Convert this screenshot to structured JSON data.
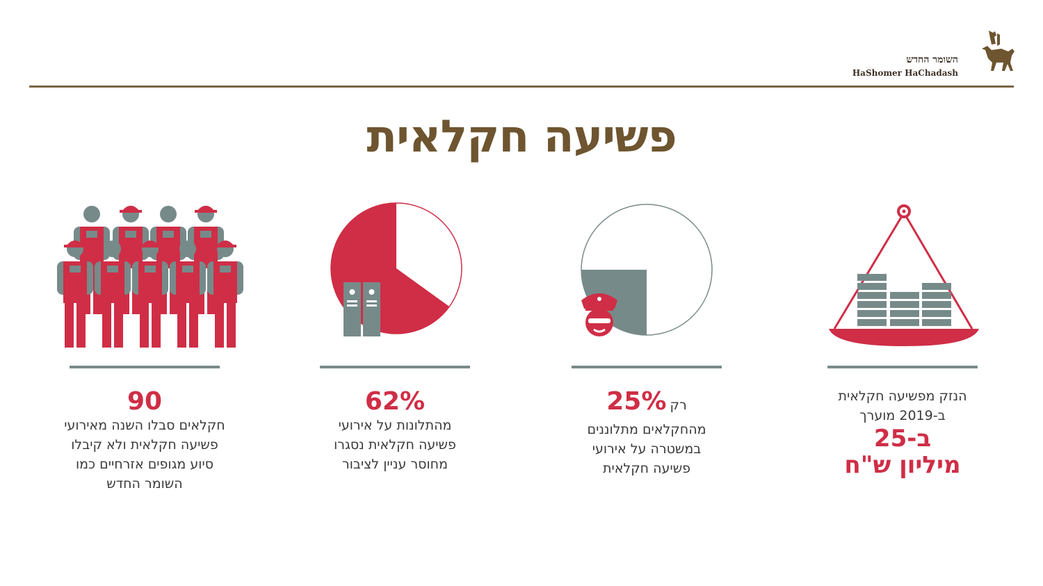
{
  "brand": {
    "name_he": "השומר החדש",
    "name_en": "HaShomer HaChadash"
  },
  "title": "פשיעה חקלאית",
  "stats": [
    {
      "icon": "scale-with-money-icon",
      "lines": [
        "הנזק מפשיעה חקלאית",
        "ב-2019 מוערך"
      ],
      "highlight": [
        "ב-25",
        "מיליון ש\"ח"
      ]
    },
    {
      "icon": "police-pie-icon",
      "pie_fraction": 0.25,
      "prefix": "רק",
      "value": "25%",
      "lines": [
        "מהחקלאים מתלוננים",
        "במשטרה על אירועי",
        "פשיעה חקלאית"
      ]
    },
    {
      "icon": "binders-pie-icon",
      "pie_fraction": 0.62,
      "value": "62%",
      "lines": [
        "מהתלונות על אירועי",
        "פשיעה חקלאית נסגרו",
        "מחוסר עניין לציבור"
      ]
    },
    {
      "icon": "farmers-group-icon",
      "value": "90",
      "lines": [
        "חקלאים סבלו השנה מאירועי",
        "פשיעה חקלאית ולא קיבלו",
        "סיוע מגופים אזרחיים כמו",
        "השומר החדש"
      ]
    }
  ],
  "colors": {
    "accent": "#cf2e46",
    "brand": "#6e5530",
    "gray": "#778a8a"
  }
}
